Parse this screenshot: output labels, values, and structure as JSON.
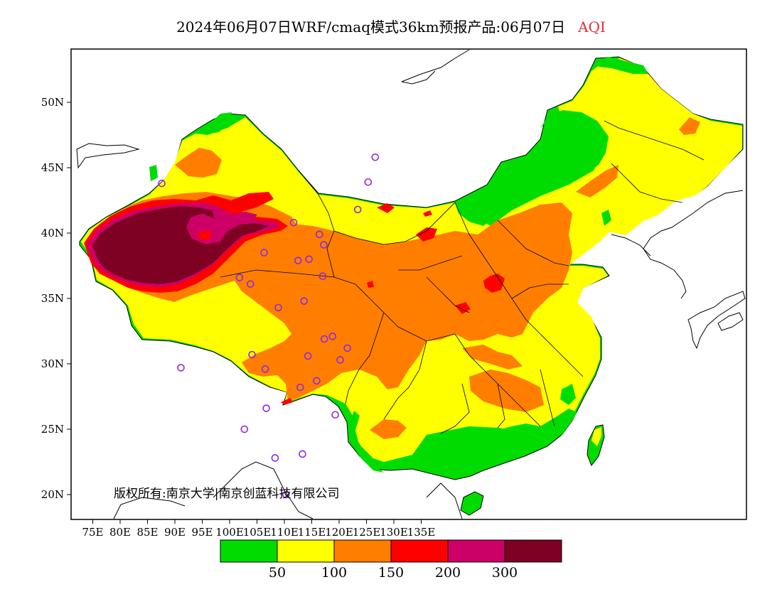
{
  "title": {
    "main": "2024年06月07日WRF/cmaq模式36km预报产品:06月07日",
    "variable": "AQI"
  },
  "copyright": "版权所有:南京大学|南京创蓝科技有限公司",
  "axes": {
    "lon_labels": [
      "75E",
      "80E",
      "85E",
      "90E",
      "95E",
      "100E",
      "105E",
      "110E",
      "115E",
      "120E",
      "125E",
      "130E",
      "135E"
    ],
    "lat_labels": [
      "50N",
      "45N",
      "40N",
      "35N",
      "30N",
      "25N",
      "20N"
    ]
  },
  "legend": {
    "colors": [
      "#00dc00",
      "#ffff00",
      "#ff7e00",
      "#ff0000",
      "#cc0066",
      "#7e0023"
    ],
    "labels": [
      "50",
      "100",
      "150",
      "200",
      "300"
    ]
  },
  "stations": [
    {
      "lon": 87.6,
      "lat": 43.8
    },
    {
      "lon": 111.7,
      "lat": 40.8
    },
    {
      "lon": 126.6,
      "lat": 45.8
    },
    {
      "lon": 125.3,
      "lat": 43.9
    },
    {
      "lon": 123.4,
      "lat": 41.8
    },
    {
      "lon": 116.4,
      "lat": 39.9
    },
    {
      "lon": 117.2,
      "lat": 39.1
    },
    {
      "lon": 114.5,
      "lat": 38.0
    },
    {
      "lon": 112.5,
      "lat": 37.9
    },
    {
      "lon": 117.0,
      "lat": 36.7
    },
    {
      "lon": 106.3,
      "lat": 38.5
    },
    {
      "lon": 101.8,
      "lat": 36.6
    },
    {
      "lon": 103.8,
      "lat": 36.1
    },
    {
      "lon": 108.9,
      "lat": 34.3
    },
    {
      "lon": 113.6,
      "lat": 34.8
    },
    {
      "lon": 117.3,
      "lat": 31.9
    },
    {
      "lon": 118.8,
      "lat": 32.1
    },
    {
      "lon": 121.5,
      "lat": 31.2
    },
    {
      "lon": 120.2,
      "lat": 30.3
    },
    {
      "lon": 114.3,
      "lat": 30.6
    },
    {
      "lon": 104.1,
      "lat": 30.7
    },
    {
      "lon": 106.5,
      "lat": 29.6
    },
    {
      "lon": 112.9,
      "lat": 28.2
    },
    {
      "lon": 115.9,
      "lat": 28.7
    },
    {
      "lon": 119.3,
      "lat": 26.1
    },
    {
      "lon": 106.7,
      "lat": 26.6
    },
    {
      "lon": 102.7,
      "lat": 25.0
    },
    {
      "lon": 108.3,
      "lat": 22.8
    },
    {
      "lon": 113.3,
      "lat": 23.1
    },
    {
      "lon": 110.3,
      "lat": 20.0
    },
    {
      "lon": 91.1,
      "lat": 29.7
    }
  ]
}
